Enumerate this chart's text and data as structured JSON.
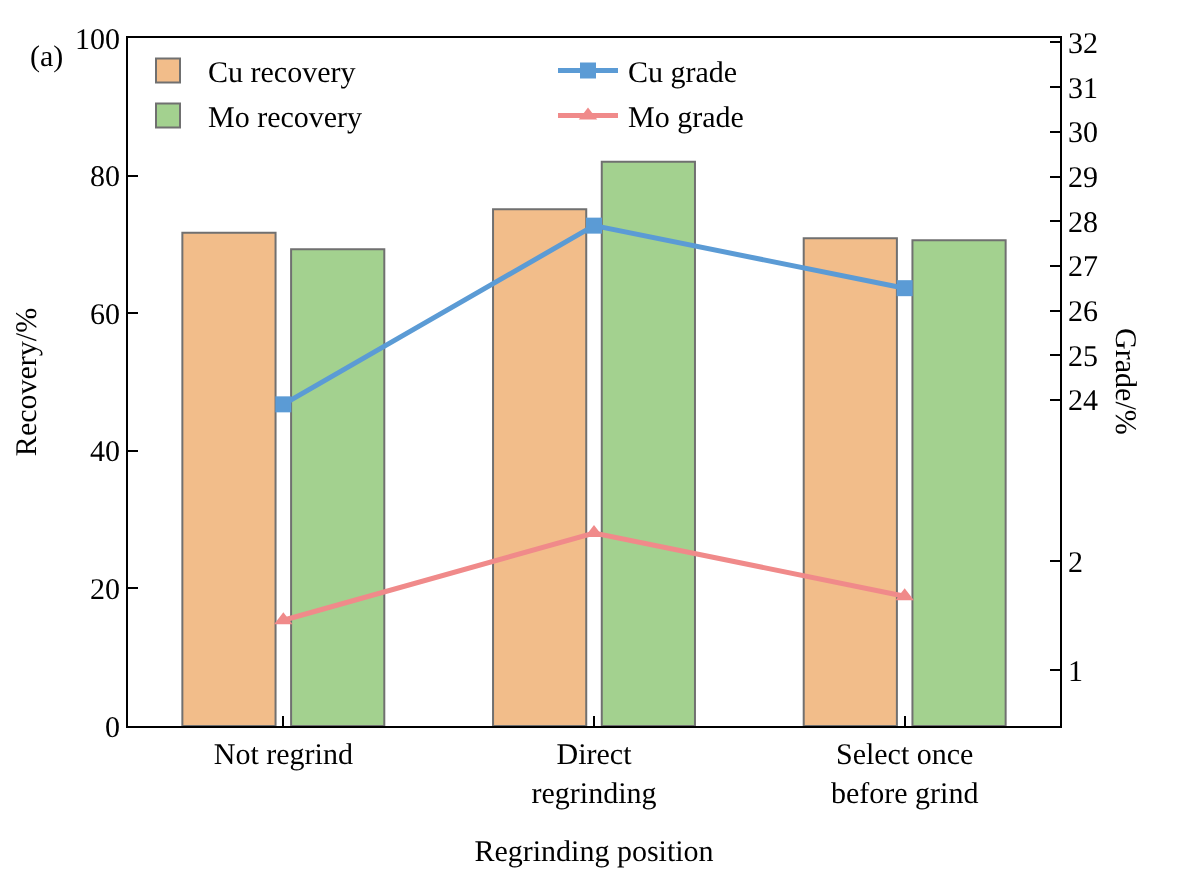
{
  "chart_data": {
    "type": "bar",
    "xlabel": "Regrinding position",
    "ylabel": "Recovery/%",
    "y2label": "Grade/%",
    "annotations": [
      "(a)"
    ],
    "categories": [
      "Not regrind",
      "Direct\nregrinding",
      "Select once\nbefore grind"
    ],
    "series": [
      {
        "name": "Cu recovery",
        "color": "#f2bd8a",
        "values": [
          71.7,
          75.1,
          70.9
        ]
      },
      {
        "name": "Cu grade",
        "type": "line",
        "axis": "y2",
        "color": "#5b9bd5",
        "marker": "square",
        "values": [
          23.9,
          27.9,
          26.5
        ]
      },
      {
        "name": "Mo recovery",
        "color": "#a3d18f",
        "values": [
          69.3,
          82.0,
          70.6
        ]
      },
      {
        "name": "Mo grade",
        "type": "line",
        "axis": "y3",
        "color": "#f08a8a",
        "marker": "triangle",
        "values": [
          1.46,
          2.26,
          1.68
        ]
      }
    ],
    "ylim": [
      0,
      100
    ],
    "yticks": [
      0,
      20,
      40,
      60,
      80,
      100
    ],
    "y2lim": [
      16.7,
      32.1
    ],
    "y2ticks": [
      24,
      25,
      26,
      27,
      28,
      29,
      30,
      31,
      32
    ],
    "y3lim": [
      0.49,
      6.8
    ],
    "y3ticks": [
      1,
      2
    ],
    "legend": "top left"
  }
}
